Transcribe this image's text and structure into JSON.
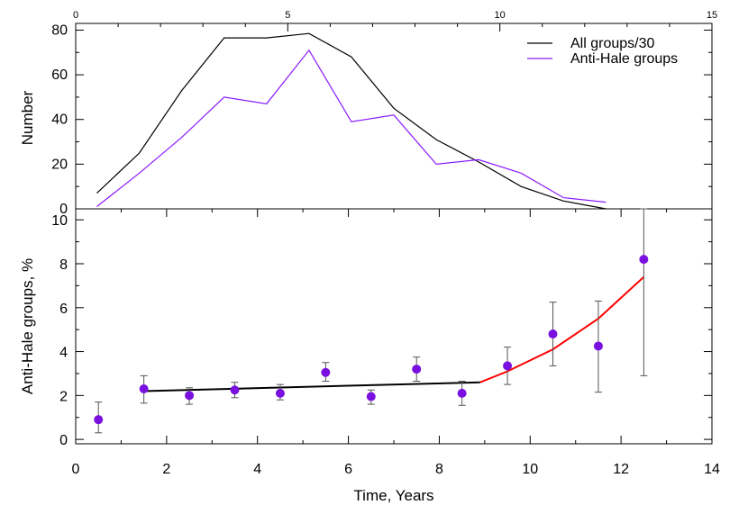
{
  "chart_data": [
    {
      "type": "line",
      "panel": "top",
      "ylabel": "Number",
      "xlim": [
        0,
        15
      ],
      "ylim": [
        0,
        83
      ],
      "x_top_ticks": [
        0,
        5,
        10,
        15
      ],
      "y_ticks": [
        0,
        20,
        40,
        60,
        80
      ],
      "legend_position": "top-right",
      "series": [
        {
          "name": "All groups/30",
          "color": "#000000",
          "x": [
            0.5,
            1.5,
            2.5,
            3.5,
            4.5,
            5.5,
            6.5,
            7.5,
            8.5,
            9.5,
            10.5,
            11.5,
            12.5
          ],
          "y": [
            7,
            25,
            53,
            76.5,
            76.5,
            78.5,
            68,
            45,
            31,
            21,
            10,
            3.5,
            0
          ]
        },
        {
          "name": "Anti-Hale groups",
          "color": "#8b1aff",
          "x": [
            0.5,
            1.5,
            2.5,
            3.5,
            4.5,
            5.5,
            6.5,
            7.5,
            8.5,
            9.5,
            10.5,
            11.5,
            12.5
          ],
          "y": [
            1,
            16,
            32,
            50,
            47,
            71,
            39,
            42,
            20,
            22,
            16,
            5,
            3
          ]
        }
      ]
    },
    {
      "type": "scatter",
      "panel": "bottom",
      "xlabel": "Time, Years",
      "ylabel": "Anti-Hale groups, %",
      "xlim": [
        0,
        14
      ],
      "ylim": [
        -0.2,
        10.5
      ],
      "x_ticks": [
        0,
        2,
        4,
        6,
        8,
        10,
        12,
        14
      ],
      "y_ticks": [
        0,
        2,
        4,
        6,
        8,
        10
      ],
      "points": {
        "color": "#7a10e0",
        "x": [
          0.5,
          1.5,
          2.5,
          3.5,
          4.5,
          5.5,
          6.5,
          7.5,
          8.5,
          9.5,
          10.5,
          11.5,
          12.5
        ],
        "y": [
          0.9,
          2.3,
          2.0,
          2.25,
          2.1,
          3.05,
          1.95,
          3.2,
          2.1,
          3.35,
          4.8,
          4.25,
          8.2
        ],
        "err_low": [
          0.3,
          1.65,
          1.6,
          1.9,
          1.8,
          2.65,
          1.6,
          2.65,
          1.55,
          2.5,
          3.35,
          2.15,
          2.9
        ],
        "err_high": [
          1.7,
          2.9,
          2.35,
          2.6,
          2.5,
          3.5,
          2.25,
          3.75,
          2.65,
          4.2,
          6.25,
          6.3,
          10.5
        ]
      },
      "fit_lines": [
        {
          "color": "#000000",
          "x": [
            1.5,
            8.9
          ],
          "y": [
            2.2,
            2.6
          ]
        },
        {
          "color": "#ff0000",
          "x": [
            8.9,
            9.5,
            10.5,
            11.5,
            12.5
          ],
          "y": [
            2.6,
            3.1,
            4.1,
            5.5,
            7.4
          ]
        }
      ]
    }
  ]
}
